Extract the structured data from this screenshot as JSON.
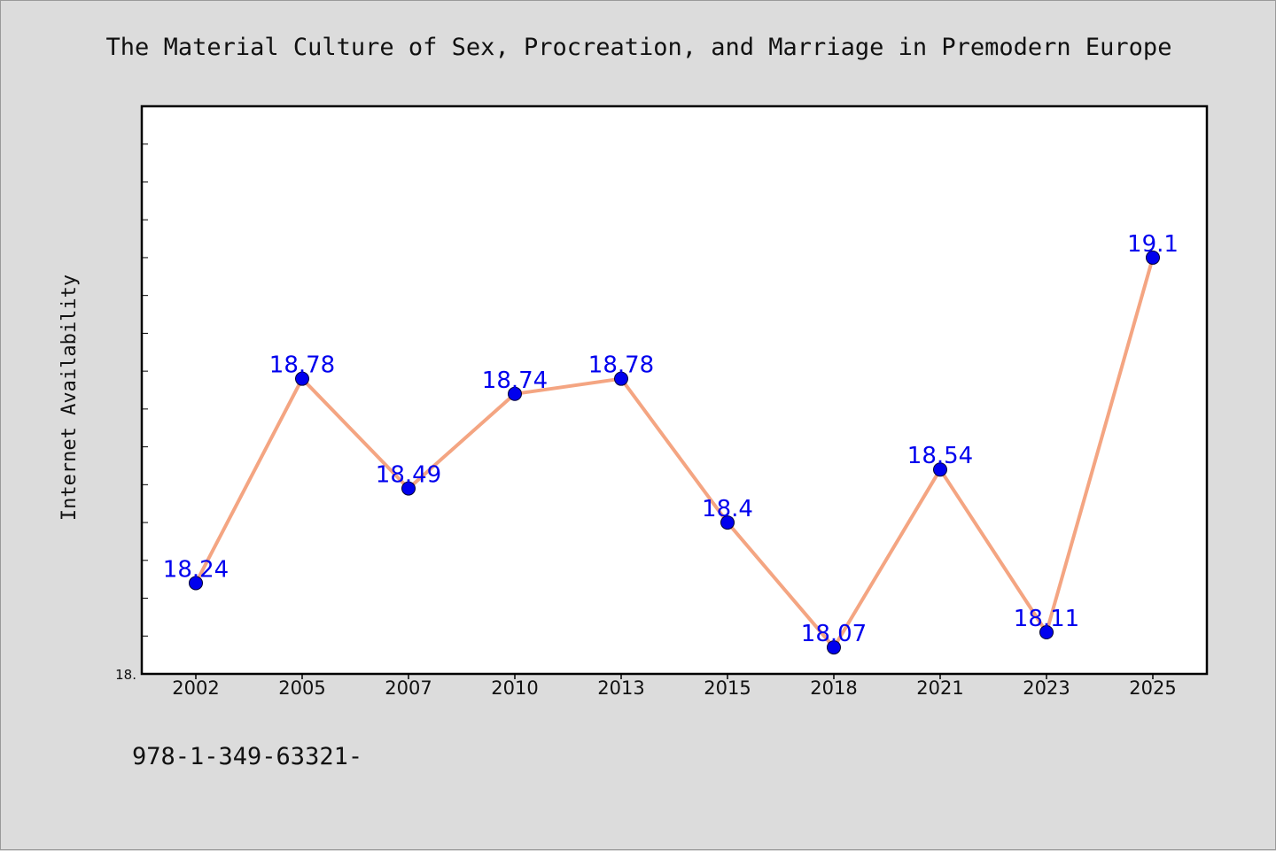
{
  "chart_data": {
    "type": "line",
    "title": "The Material Culture of Sex, Procreation, and Marriage in Premodern Europe",
    "ylabel": "Internet Availability",
    "xlabel": "",
    "categories": [
      "2002",
      "2005",
      "2007",
      "2010",
      "2013",
      "2015",
      "2018",
      "2021",
      "2023",
      "2025"
    ],
    "values": [
      18.24,
      18.78,
      18.49,
      18.74,
      18.78,
      18.4,
      18.07,
      18.54,
      18.11,
      19.1
    ],
    "value_labels": [
      "18.24",
      "18.78",
      "18.49",
      "18.74",
      "18.78",
      "18.4",
      "18.07",
      "18.54",
      "18.11",
      "19.1"
    ],
    "ylim": [
      18.0,
      19.5
    ],
    "y_tick_label": "18.",
    "grid": false,
    "colors": {
      "line": "#f4a582",
      "marker": "#0000ee",
      "label": "#0000ee",
      "plot_bg": "#ffffff",
      "page_bg": "#dcdcdc"
    }
  },
  "footer": {
    "text": "978-1-349-63321-"
  }
}
